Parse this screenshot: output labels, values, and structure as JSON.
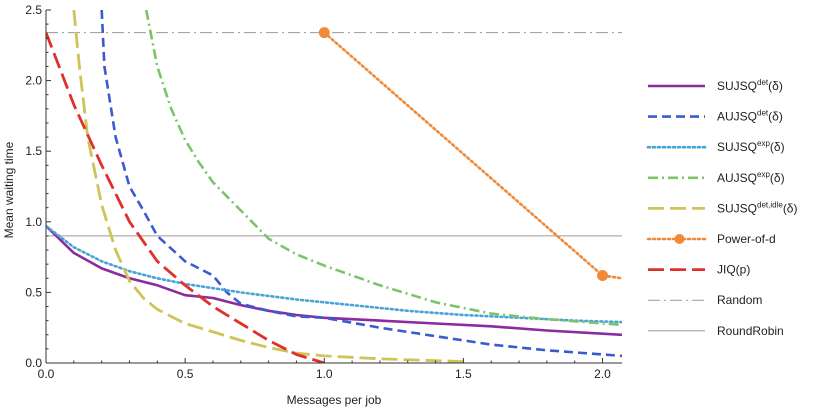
{
  "chart_data": {
    "type": "line",
    "title": "",
    "xlabel": "Messages per job",
    "ylabel": "Mean waiting time",
    "xlim": [
      0,
      2.07
    ],
    "ylim": [
      0,
      2.5
    ],
    "x_ticks": [
      "0.0",
      "0.5",
      "1.0",
      "1.5",
      "2.0"
    ],
    "y_ticks": [
      "0.0",
      "0.5",
      "1.0",
      "1.5",
      "2.0",
      "2.5"
    ],
    "legend_position": "right",
    "series": [
      {
        "name_base": "SUJSQ",
        "name_sup": "det",
        "name_tail": "(δ)",
        "color": "#8a2b9e",
        "dash": "solid",
        "marker": "none",
        "points": [
          [
            0,
            0.97
          ],
          [
            0.1,
            0.78
          ],
          [
            0.2,
            0.67
          ],
          [
            0.3,
            0.6
          ],
          [
            0.4,
            0.55
          ],
          [
            0.5,
            0.48
          ],
          [
            0.6,
            0.46
          ],
          [
            0.7,
            0.41
          ],
          [
            0.8,
            0.37
          ],
          [
            0.9,
            0.34
          ],
          [
            1.0,
            0.32
          ],
          [
            1.2,
            0.3
          ],
          [
            1.4,
            0.28
          ],
          [
            1.6,
            0.26
          ],
          [
            1.8,
            0.23
          ],
          [
            2.07,
            0.2
          ]
        ]
      },
      {
        "name_base": "AUJSQ",
        "name_sup": "det",
        "name_tail": "(δ)",
        "color": "#3a5bcf",
        "dash": "dashed",
        "marker": "none",
        "points": [
          [
            0.2,
            2.5
          ],
          [
            0.21,
            2.1
          ],
          [
            0.25,
            1.6
          ],
          [
            0.3,
            1.25
          ],
          [
            0.35,
            1.08
          ],
          [
            0.4,
            0.9
          ],
          [
            0.5,
            0.72
          ],
          [
            0.6,
            0.62
          ],
          [
            0.65,
            0.5
          ],
          [
            0.7,
            0.42
          ],
          [
            0.8,
            0.37
          ],
          [
            0.9,
            0.33
          ],
          [
            1.0,
            0.32
          ],
          [
            1.2,
            0.25
          ],
          [
            1.4,
            0.19
          ],
          [
            1.6,
            0.13
          ],
          [
            1.8,
            0.09
          ],
          [
            2.07,
            0.05
          ]
        ]
      },
      {
        "name_base": "SUJSQ",
        "name_sup": "exp",
        "name_tail": "(δ)",
        "color": "#4aa3d6",
        "dash": "dotted",
        "marker": "none",
        "points": [
          [
            0,
            0.97
          ],
          [
            0.1,
            0.82
          ],
          [
            0.2,
            0.72
          ],
          [
            0.3,
            0.65
          ],
          [
            0.4,
            0.6
          ],
          [
            0.5,
            0.56
          ],
          [
            0.7,
            0.5
          ],
          [
            0.9,
            0.45
          ],
          [
            1.1,
            0.41
          ],
          [
            1.3,
            0.37
          ],
          [
            1.5,
            0.34
          ],
          [
            1.7,
            0.32
          ],
          [
            1.9,
            0.3
          ],
          [
            2.07,
            0.29
          ]
        ]
      },
      {
        "name_base": "AUJSQ",
        "name_sup": "exp",
        "name_tail": "(δ)",
        "color": "#7cc46a",
        "dash": "dashdot",
        "marker": "none",
        "points": [
          [
            0.36,
            2.5
          ],
          [
            0.4,
            2.1
          ],
          [
            0.45,
            1.8
          ],
          [
            0.5,
            1.58
          ],
          [
            0.55,
            1.42
          ],
          [
            0.6,
            1.28
          ],
          [
            0.7,
            1.08
          ],
          [
            0.8,
            0.88
          ],
          [
            0.9,
            0.77
          ],
          [
            1.0,
            0.69
          ],
          [
            1.2,
            0.55
          ],
          [
            1.4,
            0.43
          ],
          [
            1.6,
            0.35
          ],
          [
            1.8,
            0.31
          ],
          [
            2.07,
            0.27
          ]
        ]
      },
      {
        "name_base": "SUJSQ",
        "name_sup": "det,idle",
        "name_tail": "(δ)",
        "color": "#cfc35a",
        "dash": "longdash",
        "marker": "none",
        "points": [
          [
            0.1,
            2.5
          ],
          [
            0.12,
            2.1
          ],
          [
            0.15,
            1.6
          ],
          [
            0.2,
            1.12
          ],
          [
            0.25,
            0.8
          ],
          [
            0.3,
            0.58
          ],
          [
            0.35,
            0.46
          ],
          [
            0.4,
            0.38
          ],
          [
            0.5,
            0.28
          ],
          [
            0.6,
            0.22
          ],
          [
            0.7,
            0.16
          ],
          [
            0.8,
            0.11
          ],
          [
            0.9,
            0.07
          ],
          [
            1.0,
            0.05
          ],
          [
            1.2,
            0.03
          ],
          [
            1.5,
            0.01
          ]
        ]
      },
      {
        "name_base": "Power-of-d",
        "name_sup": "",
        "name_tail": "",
        "color": "#ef8a3a",
        "dash": "dotted",
        "marker": "circle",
        "points": [
          [
            1,
            2.34
          ],
          [
            2,
            0.62
          ],
          [
            2.07,
            0.6
          ]
        ]
      },
      {
        "name_base": "JIQ(p)",
        "name_sup": "",
        "name_tail": "",
        "color": "#e0302a",
        "dash": "longdash",
        "marker": "none",
        "points": [
          [
            0,
            2.34
          ],
          [
            0.1,
            1.83
          ],
          [
            0.2,
            1.4
          ],
          [
            0.3,
            1.0
          ],
          [
            0.4,
            0.72
          ],
          [
            0.5,
            0.55
          ],
          [
            0.6,
            0.4
          ],
          [
            0.7,
            0.28
          ],
          [
            0.8,
            0.16
          ],
          [
            0.9,
            0.06
          ],
          [
            1.0,
            0.0
          ]
        ]
      },
      {
        "name_base": "Random",
        "name_sup": "",
        "name_tail": "",
        "color": "#9a9a9a",
        "dash": "thindashdot",
        "marker": "none",
        "points": [
          [
            0,
            2.34
          ],
          [
            2.07,
            2.34
          ]
        ]
      },
      {
        "name_base": "RoundRobin",
        "name_sup": "",
        "name_tail": "",
        "color": "#9a9a9a",
        "dash": "thinsolid",
        "marker": "none",
        "points": [
          [
            0,
            0.9
          ],
          [
            2.07,
            0.9
          ]
        ]
      }
    ]
  }
}
